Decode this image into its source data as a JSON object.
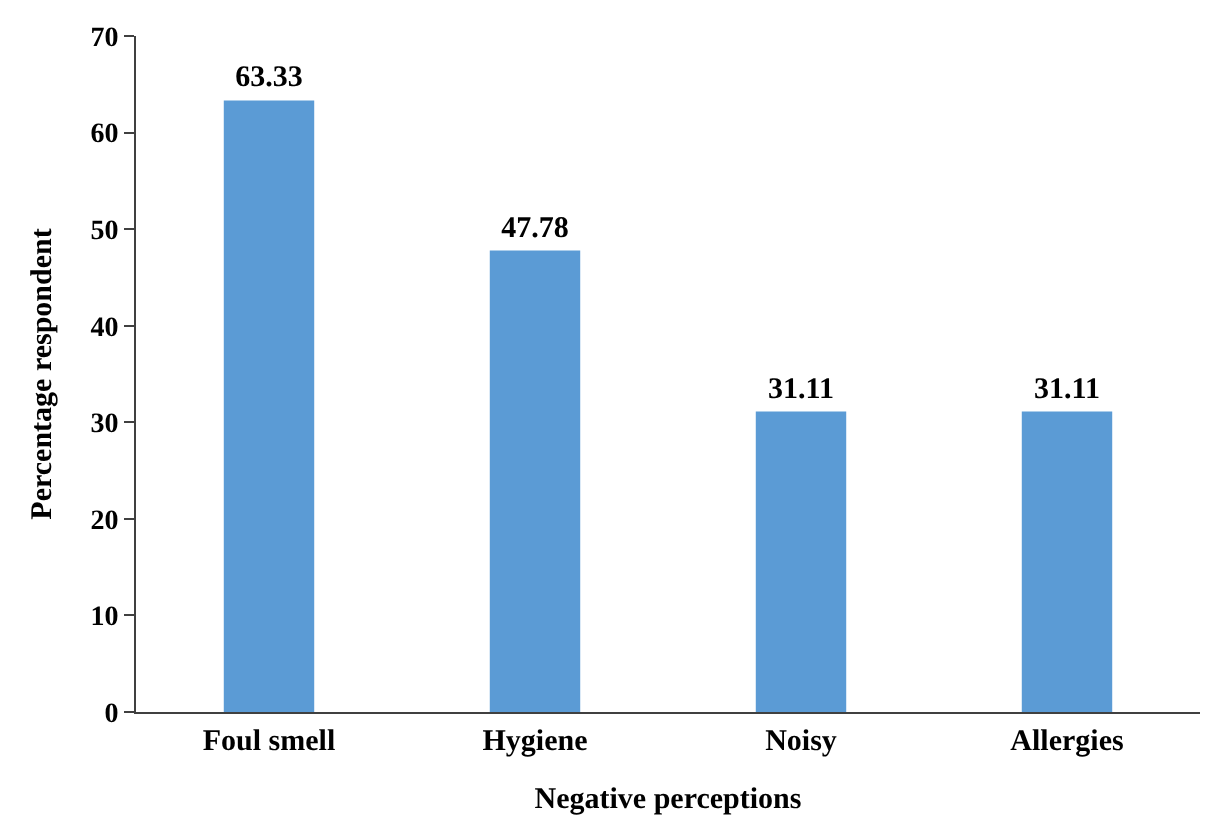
{
  "chart_data": {
    "type": "bar",
    "xlabel": "Negative perceptions",
    "ylabel": "Percentage respondent",
    "categories": [
      "Foul smell",
      "Hygiene",
      "Noisy",
      "Allergies"
    ],
    "values": [
      63.33,
      47.78,
      31.11,
      31.11
    ],
    "color": "#5b9bd5",
    "ylim": [
      0,
      70
    ],
    "yticks": [
      0,
      10,
      20,
      30,
      40,
      50,
      60,
      70
    ],
    "data_labels": true
  }
}
